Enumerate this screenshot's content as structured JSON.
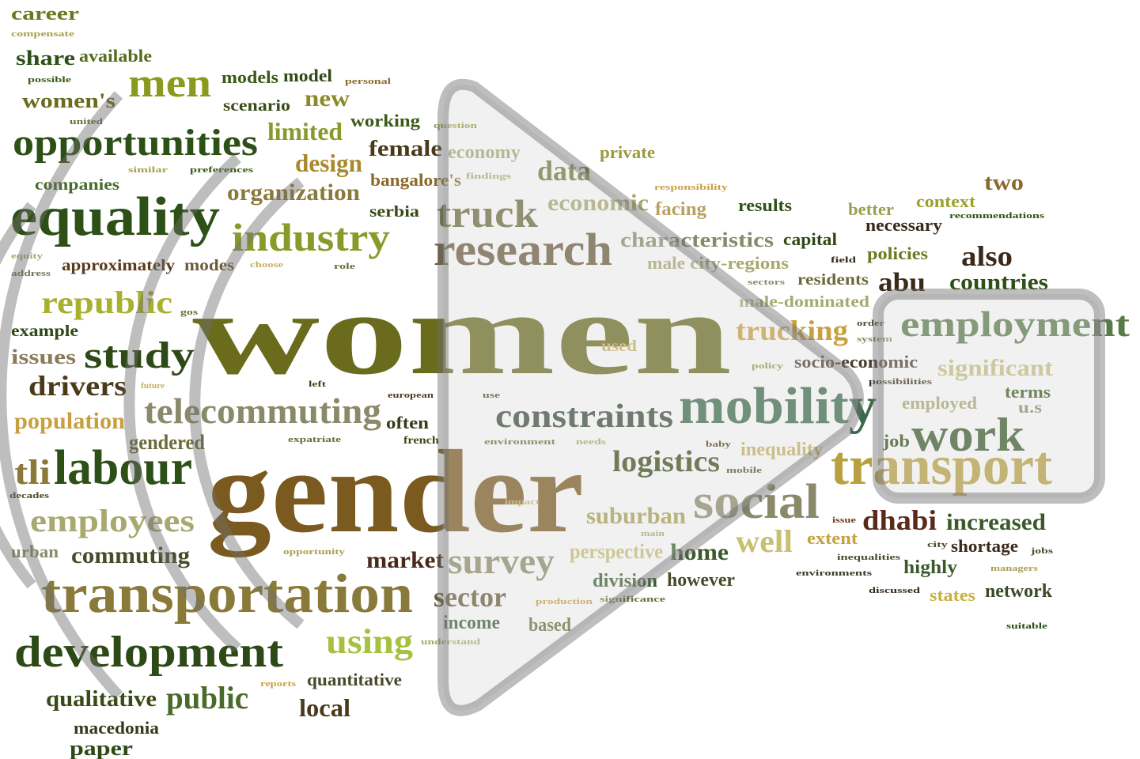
{
  "words": [
    "career",
    "compensate",
    "share",
    "available",
    "possible",
    "men",
    "models",
    "model",
    "personal",
    "women's",
    "scenario",
    "new",
    "united",
    "working",
    "question",
    "opportunities",
    "limited",
    "female",
    "economy",
    "private",
    "similar",
    "preferences",
    "design",
    "bangalore's",
    "findings",
    "data",
    "two",
    "companies",
    "responsibility",
    "equality",
    "organization",
    "truck",
    "economic",
    "facing",
    "results",
    "better",
    "context",
    "recommendations",
    "necessary",
    "industry",
    "serbia",
    "research",
    "characteristics",
    "capital",
    "also",
    "policies",
    "equity",
    "approximately",
    "modes",
    "choose",
    "role",
    "address",
    "male",
    "city-regions",
    "field",
    "sectors",
    "residents",
    "abu",
    "countries",
    "women",
    "republic",
    "male-dominated",
    "gos",
    "example",
    "employment",
    "study",
    "issues",
    "trucking",
    "order",
    "system",
    "used",
    "policy",
    "socio-economic",
    "significant",
    "possibilities",
    "terms",
    "drivers",
    "future",
    "left",
    "european",
    "use",
    "telecommuting",
    "often",
    "constraints",
    "mobility",
    "employed",
    "u.s",
    "population",
    "expatriate",
    "french",
    "environment",
    "needs",
    "job",
    "work",
    "gendered",
    "baby",
    "inequality",
    "tli",
    "labour",
    "gender",
    "logistics",
    "mobile",
    "transport",
    "decades",
    "impact",
    "social",
    "employees",
    "suburban",
    "issue",
    "dhabi",
    "increased",
    "main",
    "extent",
    "well",
    "city",
    "shortage",
    "jobs",
    "urban",
    "commuting",
    "opportunity",
    "market",
    "survey",
    "perspective",
    "home",
    "inequalities",
    "managers",
    "environments",
    "highly",
    "transportation",
    "division",
    "however",
    "discussed",
    "states",
    "network",
    "sector",
    "production",
    "significance",
    "income",
    "based",
    "suitable",
    "using",
    "understand",
    "development",
    "reports",
    "quantitative",
    "qualitative",
    "public",
    "local",
    "macedonia",
    "paper"
  ]
}
